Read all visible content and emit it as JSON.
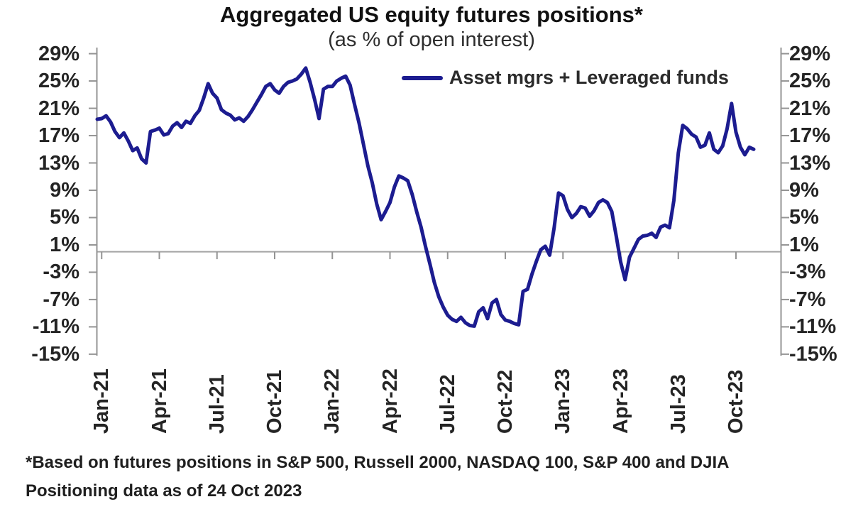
{
  "chart_data": {
    "type": "line",
    "title": "Aggregated US equity futures positions*",
    "subtitle": "(as % of open interest)",
    "unit": "% of open interest",
    "frequency": "weekly",
    "x_start": "Jan-21",
    "x_end": "24 Oct 2023",
    "ylim": [
      -15,
      29
    ],
    "zero_line": true,
    "grid": false,
    "legend_position": "top-right-inside",
    "colors": {
      "line": "#1c1c90",
      "axis": "#949494",
      "zero_line": "#a3a3a3"
    },
    "y_ticks": {
      "values": [
        29,
        25,
        21,
        17,
        13,
        9,
        5,
        1,
        -3,
        -7,
        -11,
        -15
      ],
      "labels": [
        "29%",
        "25%",
        "21%",
        "17%",
        "13%",
        "9%",
        "5%",
        "1%",
        "-3%",
        "-7%",
        "-11%",
        "-15%"
      ],
      "shown_on": "both-sides"
    },
    "x_ticks": {
      "labels": [
        "Jan-21",
        "Apr-21",
        "Jul-21",
        "Oct-21",
        "Jan-22",
        "Apr-22",
        "Jul-22",
        "Oct-22",
        "Jan-23",
        "Apr-23",
        "Jul-23",
        "Oct-23"
      ],
      "week_indices": [
        1,
        14,
        27,
        40,
        53,
        66,
        79,
        92,
        105,
        118,
        131,
        144
      ]
    },
    "series": [
      {
        "name": "Asset mgrs + Leveraged funds",
        "color": "#1c1c90",
        "values": [
          19.4,
          19.5,
          19.9,
          19.0,
          17.6,
          16.7,
          17.4,
          16.2,
          14.8,
          15.2,
          13.6,
          13.0,
          17.6,
          17.8,
          18.1,
          17.1,
          17.3,
          18.4,
          18.9,
          18.2,
          19.1,
          18.8,
          19.9,
          20.7,
          22.5,
          24.6,
          23.2,
          22.5,
          20.8,
          20.3,
          20.0,
          19.3,
          19.6,
          19.1,
          19.8,
          20.8,
          21.9,
          23.0,
          24.2,
          24.6,
          23.7,
          23.2,
          24.2,
          24.8,
          25.0,
          25.3,
          26.0,
          26.9,
          24.8,
          22.3,
          19.5,
          23.8,
          24.2,
          24.2,
          25.0,
          25.4,
          25.7,
          24.4,
          21.6,
          18.9,
          15.8,
          12.6,
          10.1,
          7.0,
          4.7,
          5.9,
          7.2,
          9.5,
          11.1,
          10.8,
          10.4,
          8.4,
          5.9,
          3.6,
          0.8,
          -1.8,
          -4.5,
          -6.6,
          -8.1,
          -9.3,
          -9.9,
          -10.2,
          -9.6,
          -10.4,
          -10.8,
          -10.9,
          -8.8,
          -8.2,
          -9.8,
          -7.5,
          -7.0,
          -9.2,
          -10.0,
          -10.2,
          -10.5,
          -10.7,
          -5.8,
          -5.5,
          -3.3,
          -1.4,
          0.3,
          0.8,
          -0.5,
          3.5,
          8.6,
          8.2,
          6.2,
          5.0,
          5.6,
          6.6,
          6.4,
          5.2,
          6.0,
          7.2,
          7.6,
          7.2,
          5.9,
          2.3,
          -1.5,
          -4.1,
          -0.8,
          0.5,
          1.8,
          2.3,
          2.4,
          2.7,
          2.1,
          3.6,
          3.9,
          3.5,
          7.5,
          14.5,
          18.5,
          18.0,
          17.2,
          16.8,
          15.3,
          15.6,
          17.4,
          15.0,
          14.5,
          15.5,
          18.0,
          21.7,
          17.5,
          15.3,
          14.2,
          15.3,
          15.0
        ]
      }
    ],
    "footnotes": [
      "*Based on futures positions in S&P 500, Russell 2000, NASDAQ 100, S&P 400 and DJIA",
      "Positioning data as of 24 Oct 2023"
    ]
  }
}
